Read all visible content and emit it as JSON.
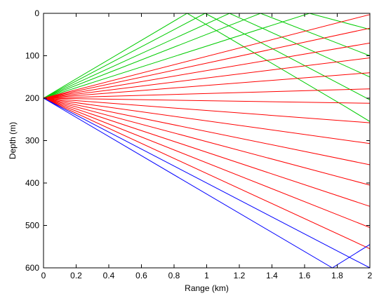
{
  "chart_data": {
    "type": "line",
    "title": "",
    "xlabel": "Range (km)",
    "ylabel": "Depth (m)",
    "xlim": [
      0,
      2
    ],
    "ylim": [
      0,
      600
    ],
    "y_reversed": true,
    "grid": false,
    "legend": "none",
    "xticks": [
      "0",
      "0.2",
      "0.4",
      "0.6",
      "0.8",
      "1",
      "1.2",
      "1.4",
      "1.6",
      "1.8",
      "2"
    ],
    "yticks": [
      "0",
      "100",
      "200",
      "300",
      "400",
      "500",
      "600"
    ],
    "source": {
      "range_km": 0,
      "depth_m": 200
    },
    "series": [
      {
        "color": "#00cc00",
        "points": [
          [
            0,
            200
          ],
          [
            0.88,
            0
          ],
          [
            1.85,
            220
          ],
          [
            2,
            255
          ]
        ]
      },
      {
        "color": "#00cc00",
        "points": [
          [
            0,
            200
          ],
          [
            0.99,
            0
          ],
          [
            2,
            204
          ]
        ]
      },
      {
        "color": "#00cc00",
        "points": [
          [
            0,
            200
          ],
          [
            1.14,
            0
          ],
          [
            2,
            150
          ]
        ]
      },
      {
        "color": "#00cc00",
        "points": [
          [
            0,
            200
          ],
          [
            1.33,
            0
          ],
          [
            2,
            100
          ]
        ]
      },
      {
        "color": "#00cc00",
        "points": [
          [
            0,
            200
          ],
          [
            1.63,
            0
          ],
          [
            2,
            38
          ]
        ]
      },
      {
        "color": "#ff0000",
        "points": [
          [
            0,
            200
          ],
          [
            2,
            3
          ]
        ]
      },
      {
        "color": "#ff0000",
        "points": [
          [
            0,
            200
          ],
          [
            2,
            35
          ]
        ]
      },
      {
        "color": "#ff0000",
        "points": [
          [
            0,
            200
          ],
          [
            2,
            70
          ]
        ]
      },
      {
        "color": "#ff0000",
        "points": [
          [
            0,
            200
          ],
          [
            2,
            105
          ]
        ]
      },
      {
        "color": "#ff0000",
        "points": [
          [
            0,
            200
          ],
          [
            2,
            140
          ]
        ]
      },
      {
        "color": "#ff0000",
        "points": [
          [
            0,
            200
          ],
          [
            2,
            178
          ]
        ]
      },
      {
        "color": "#ff0000",
        "points": [
          [
            0,
            200
          ],
          [
            2,
            212
          ]
        ]
      },
      {
        "color": "#ff0000",
        "points": [
          [
            0,
            200
          ],
          [
            2,
            258
          ]
        ]
      },
      {
        "color": "#ff0000",
        "points": [
          [
            0,
            200
          ],
          [
            2,
            307
          ]
        ]
      },
      {
        "color": "#ff0000",
        "points": [
          [
            0,
            200
          ],
          [
            2,
            357
          ]
        ]
      },
      {
        "color": "#ff0000",
        "points": [
          [
            0,
            200
          ],
          [
            2,
            405
          ]
        ]
      },
      {
        "color": "#ff0000",
        "points": [
          [
            0,
            200
          ],
          [
            2,
            455
          ]
        ]
      },
      {
        "color": "#ff0000",
        "points": [
          [
            0,
            200
          ],
          [
            2,
            505
          ]
        ]
      },
      {
        "color": "#ff0000",
        "points": [
          [
            0,
            200
          ],
          [
            2,
            555
          ]
        ]
      },
      {
        "color": "#0000ff",
        "points": [
          [
            0,
            200
          ],
          [
            2,
            600
          ]
        ]
      },
      {
        "color": "#0000ff",
        "points": [
          [
            0,
            200
          ],
          [
            1.77,
            600
          ],
          [
            2,
            545
          ]
        ]
      }
    ]
  }
}
